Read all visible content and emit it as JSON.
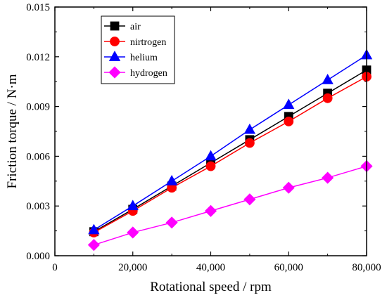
{
  "chart_data": {
    "type": "line",
    "xlabel": "Rotational speed / rpm",
    "ylabel": "Friction torque / N·m",
    "xlim": [
      0,
      80000
    ],
    "ylim": [
      0,
      0.015
    ],
    "x_ticks": [
      "0",
      "20,000",
      "40,000",
      "60,000",
      "80,000"
    ],
    "y_ticks": [
      "0.000",
      "0.003",
      "0.006",
      "0.009",
      "0.012",
      "0.015"
    ],
    "x": [
      10000,
      20000,
      30000,
      40000,
      50000,
      60000,
      70000,
      80000
    ],
    "legend_position": "top-left",
    "series": [
      {
        "name": "air",
        "color": "#000000",
        "marker": "square",
        "values": [
          0.00145,
          0.0028,
          0.0042,
          0.0056,
          0.007,
          0.0084,
          0.0098,
          0.0112
        ]
      },
      {
        "name": "nirtrogen",
        "color": "#ff0000",
        "marker": "circle",
        "values": [
          0.0014,
          0.0027,
          0.0041,
          0.0054,
          0.0068,
          0.0081,
          0.0095,
          0.0108
        ]
      },
      {
        "name": "helium",
        "color": "#0000ff",
        "marker": "triangle",
        "values": [
          0.00155,
          0.003,
          0.0045,
          0.006,
          0.0076,
          0.0091,
          0.0106,
          0.0121
        ]
      },
      {
        "name": "hydrogen",
        "color": "#ff00ff",
        "marker": "diamond",
        "values": [
          0.00065,
          0.0014,
          0.002,
          0.0027,
          0.0034,
          0.0041,
          0.0047,
          0.0054
        ]
      }
    ]
  }
}
